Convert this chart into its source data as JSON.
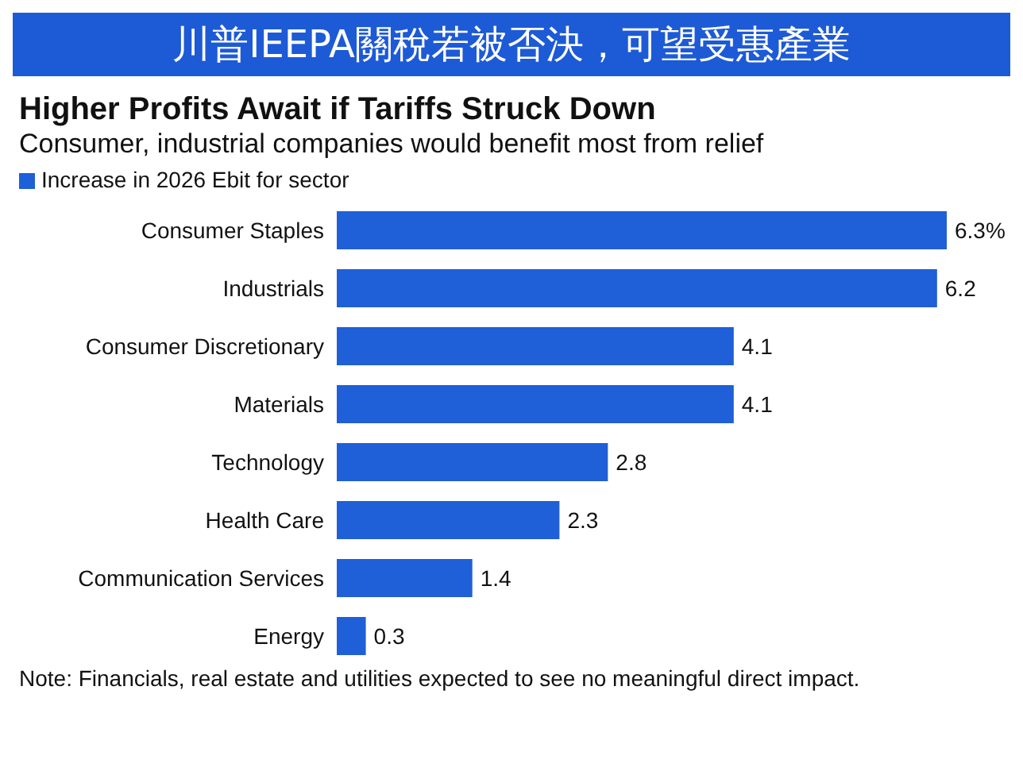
{
  "chart_data": {
    "type": "bar",
    "orientation": "horizontal",
    "title": "川普IEEPA關稅若被否決，可望受惠產業",
    "subtitle": "Higher Profits Await if Tariffs Struck Down",
    "categories": [
      "Consumer Staples",
      "Industrials",
      "Consumer Discretionary",
      "Materials",
      "Technology",
      "Health Care",
      "Communication Services",
      "Energy"
    ],
    "series": [
      {
        "name": "Increase in 2026 Ebit for sector",
        "color": "#1f5fd8",
        "values": [
          6.3,
          6.2,
          4.1,
          4.1,
          2.8,
          2.3,
          1.4,
          0.3
        ],
        "value_labels": [
          "6.3%",
          "6.2",
          "4.1",
          "4.1",
          "2.8",
          "2.3",
          "1.4",
          "0.3"
        ]
      }
    ],
    "legend": "top left",
    "grid": false,
    "annotations": [
      "Consumer, industrial companies would benefit most from relief",
      "Note: Financials, real estate and utilities expected to see no meaningful direct impact."
    ]
  }
}
